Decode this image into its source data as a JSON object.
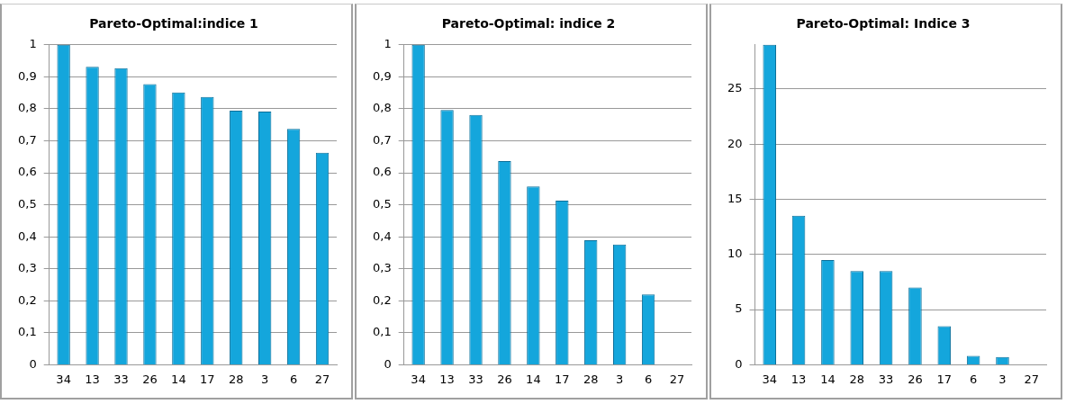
{
  "chart_data": [
    {
      "type": "bar",
      "title": "Pareto-Optimal:indice 1",
      "categories": [
        "34",
        "13",
        "33",
        "26",
        "14",
        "17",
        "28",
        "3",
        "6",
        "27"
      ],
      "values": [
        1,
        0.931,
        0.927,
        0.877,
        0.851,
        0.837,
        0.794,
        0.791,
        0.737,
        0.663
      ],
      "color": "#14a6dc",
      "ylim": [
        0,
        1
      ],
      "yticks": [
        0,
        {
          "value": 0.1,
          "label": "0,1"
        },
        {
          "value": 0.2,
          "label": "0,2"
        },
        {
          "value": 0.3,
          "label": "0,3"
        },
        {
          "value": 0.4,
          "label": "0,4"
        },
        {
          "value": 0.5,
          "label": "0,5"
        },
        {
          "value": 0.6,
          "label": "0,6"
        },
        {
          "value": 0.7,
          "label": "0,7"
        },
        {
          "value": 0.8,
          "label": "0,8"
        },
        {
          "value": 0.9,
          "label": "0,9"
        },
        1
      ],
      "grid": "y",
      "legend": false
    },
    {
      "type": "bar",
      "title": "Pareto-Optimal: indice 2",
      "categories": [
        "34",
        "13",
        "33",
        "26",
        "14",
        "17",
        "28",
        "3",
        "6",
        "27"
      ],
      "values": [
        1,
        0.796,
        0.781,
        0.637,
        0.557,
        0.513,
        0.389,
        0.376,
        0.22,
        0
      ],
      "color": "#14a6dc",
      "ylim": [
        0,
        1
      ],
      "yticks": [
        0,
        {
          "value": 0.1,
          "label": "0,1"
        },
        {
          "value": 0.2,
          "label": "0,2"
        },
        {
          "value": 0.3,
          "label": "0,3"
        },
        {
          "value": 0.4,
          "label": "0,4"
        },
        {
          "value": 0.5,
          "label": "0,5"
        },
        {
          "value": 0.6,
          "label": "0,6"
        },
        {
          "value": 0.7,
          "label": "0,7"
        },
        {
          "value": 0.8,
          "label": "0,8"
        },
        {
          "value": 0.9,
          "label": "0,9"
        },
        1
      ],
      "grid": "y",
      "legend": false
    },
    {
      "type": "bar",
      "title": "Pareto-Optimal: Indice 3",
      "categories": [
        "34",
        "13",
        "14",
        "28",
        "33",
        "26",
        "17",
        "6",
        "3",
        "27"
      ],
      "values": [
        29,
        13.5,
        9.5,
        8.5,
        8.5,
        7,
        3.5,
        0.8,
        0.7,
        0
      ],
      "color": "#14a6dc",
      "ylim": [
        0,
        29
      ],
      "yticks": [
        0,
        5,
        10,
        15,
        20,
        25
      ],
      "grid": "y",
      "legend": false
    }
  ]
}
